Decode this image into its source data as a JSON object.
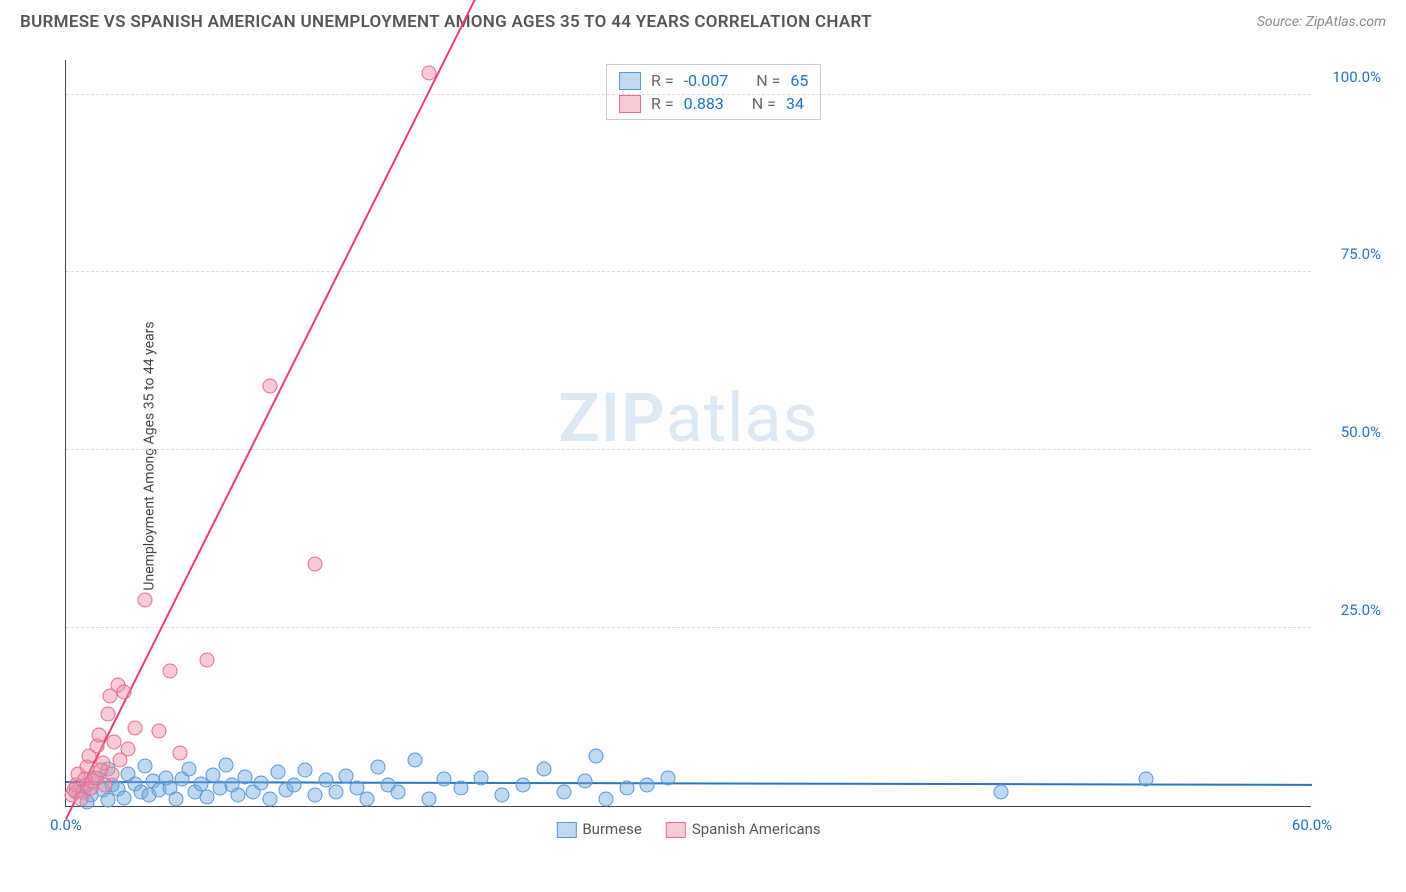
{
  "header": {
    "title": "BURMESE VS SPANISH AMERICAN UNEMPLOYMENT AMONG AGES 35 TO 44 YEARS CORRELATION CHART",
    "source": "Source: ZipAtlas.com"
  },
  "chart": {
    "type": "scatter",
    "ylabel": "Unemployment Among Ages 35 to 44 years",
    "xlim": [
      0,
      60
    ],
    "ylim": [
      0,
      105
    ],
    "xticks": [
      {
        "v": 0,
        "l": "0.0%"
      },
      {
        "v": 60,
        "l": "60.0%"
      }
    ],
    "yticks": [
      {
        "v": 25,
        "l": "25.0%"
      },
      {
        "v": 50,
        "l": "50.0%"
      },
      {
        "v": 75,
        "l": "75.0%"
      },
      {
        "v": 100,
        "l": "100.0%"
      }
    ],
    "gridlines_y": [
      25,
      50,
      75,
      100
    ],
    "grid_color": "#dddddd",
    "background_color": "#ffffff",
    "axis_color": "#444444",
    "xtick_color": "#2171c7",
    "ytick_color": "#2171c7",
    "watermark": "ZIPatlas",
    "series": [
      {
        "name": "Burmese",
        "fill": "rgba(110,170,225,0.45)",
        "stroke": "#5a99d4",
        "trend": {
          "x1": 0,
          "y1": 3.2,
          "x2": 60,
          "y2": 2.8,
          "color": "#2e74c5"
        },
        "points": [
          [
            0.5,
            2
          ],
          [
            1,
            3
          ],
          [
            1.2,
            1.5
          ],
          [
            1.5,
            4
          ],
          [
            1.8,
            2.2
          ],
          [
            2,
            5.2
          ],
          [
            2.2,
            3
          ],
          [
            2.5,
            2.4
          ],
          [
            2.8,
            1.1
          ],
          [
            3,
            4.5
          ],
          [
            3.3,
            3.1
          ],
          [
            3.6,
            2.0
          ],
          [
            3.8,
            5.6
          ],
          [
            4,
            1.5
          ],
          [
            4.2,
            3.5
          ],
          [
            4.5,
            2.2
          ],
          [
            4.8,
            4.0
          ],
          [
            5,
            2.6
          ],
          [
            5.3,
            1.0
          ],
          [
            5.6,
            3.8
          ],
          [
            5.9,
            5.2
          ],
          [
            6.2,
            2.0
          ],
          [
            6.5,
            3.1
          ],
          [
            6.8,
            1.3
          ],
          [
            7.1,
            4.4
          ],
          [
            7.4,
            2.5
          ],
          [
            7.7,
            5.8
          ],
          [
            8,
            3.0
          ],
          [
            8.3,
            1.6
          ],
          [
            8.6,
            4.1
          ],
          [
            9,
            2.0
          ],
          [
            9.4,
            3.3
          ],
          [
            9.8,
            1.0
          ],
          [
            10.2,
            4.8
          ],
          [
            10.6,
            2.2
          ],
          [
            11,
            3.0
          ],
          [
            11.5,
            5.0
          ],
          [
            12,
            1.5
          ],
          [
            12.5,
            3.6
          ],
          [
            13,
            2.0
          ],
          [
            13.5,
            4.2
          ],
          [
            14,
            2.5
          ],
          [
            14.5,
            1.0
          ],
          [
            15,
            5.5
          ],
          [
            15.5,
            3.0
          ],
          [
            16,
            2.0
          ],
          [
            16.8,
            6.5
          ],
          [
            17.5,
            1.0
          ],
          [
            18.2,
            3.8
          ],
          [
            19,
            2.5
          ],
          [
            20,
            4.0
          ],
          [
            21,
            1.5
          ],
          [
            22,
            3.0
          ],
          [
            23,
            5.2
          ],
          [
            24,
            2.0
          ],
          [
            25,
            3.5
          ],
          [
            25.5,
            7.0
          ],
          [
            26,
            1.0
          ],
          [
            27,
            2.5
          ],
          [
            28,
            3.0
          ],
          [
            29,
            4.0
          ],
          [
            45,
            2.0
          ],
          [
            52,
            3.8
          ],
          [
            1,
            0.5
          ],
          [
            2,
            0.8
          ]
        ]
      },
      {
        "name": "Spanish Americans",
        "fill": "rgba(240,140,165,0.45)",
        "stroke": "#e56f92",
        "trend": {
          "x1": 0,
          "y1": -2,
          "x2": 20,
          "y2": 115,
          "color": "#e83e72"
        },
        "points": [
          [
            0.3,
            1.5
          ],
          [
            0.5,
            3
          ],
          [
            0.6,
            4.5
          ],
          [
            0.8,
            2.0
          ],
          [
            1.0,
            5.5
          ],
          [
            1.1,
            7.0
          ],
          [
            1.3,
            3.5
          ],
          [
            1.5,
            8.5
          ],
          [
            1.6,
            10.0
          ],
          [
            1.8,
            6.0
          ],
          [
            2.0,
            13.0
          ],
          [
            2.1,
            15.5
          ],
          [
            2.3,
            9.0
          ],
          [
            2.5,
            17.0
          ],
          [
            2.8,
            16.0
          ],
          [
            3.0,
            8.0
          ],
          [
            3.3,
            11.0
          ],
          [
            3.8,
            29.0
          ],
          [
            4.5,
            10.5
          ],
          [
            5.0,
            19.0
          ],
          [
            5.5,
            7.5
          ],
          [
            6.8,
            20.5
          ],
          [
            9.8,
            59.0
          ],
          [
            12.0,
            34.0
          ],
          [
            17.5,
            103.0
          ],
          [
            0.4,
            2.2
          ],
          [
            0.7,
            1.0
          ],
          [
            0.9,
            3.8
          ],
          [
            1.2,
            2.5
          ],
          [
            1.4,
            4.0
          ],
          [
            1.7,
            5.0
          ],
          [
            1.9,
            3.0
          ],
          [
            2.2,
            4.5
          ],
          [
            2.6,
            6.5
          ]
        ]
      }
    ],
    "legend_top": [
      {
        "swatch_fill": "rgba(110,170,225,0.45)",
        "swatch_stroke": "#5a99d4",
        "r_label": "R =",
        "r": "-0.007",
        "n_label": "N =",
        "n": "65"
      },
      {
        "swatch_fill": "rgba(240,140,165,0.45)",
        "swatch_stroke": "#e56f92",
        "r_label": "R =",
        "r": "0.883",
        "n_label": "N =",
        "n": "34"
      }
    ],
    "legend_bottom": [
      {
        "swatch_fill": "rgba(110,170,225,0.45)",
        "swatch_stroke": "#5a99d4",
        "label": "Burmese"
      },
      {
        "swatch_fill": "rgba(240,140,165,0.45)",
        "swatch_stroke": "#e56f92",
        "label": "Spanish Americans"
      }
    ]
  }
}
